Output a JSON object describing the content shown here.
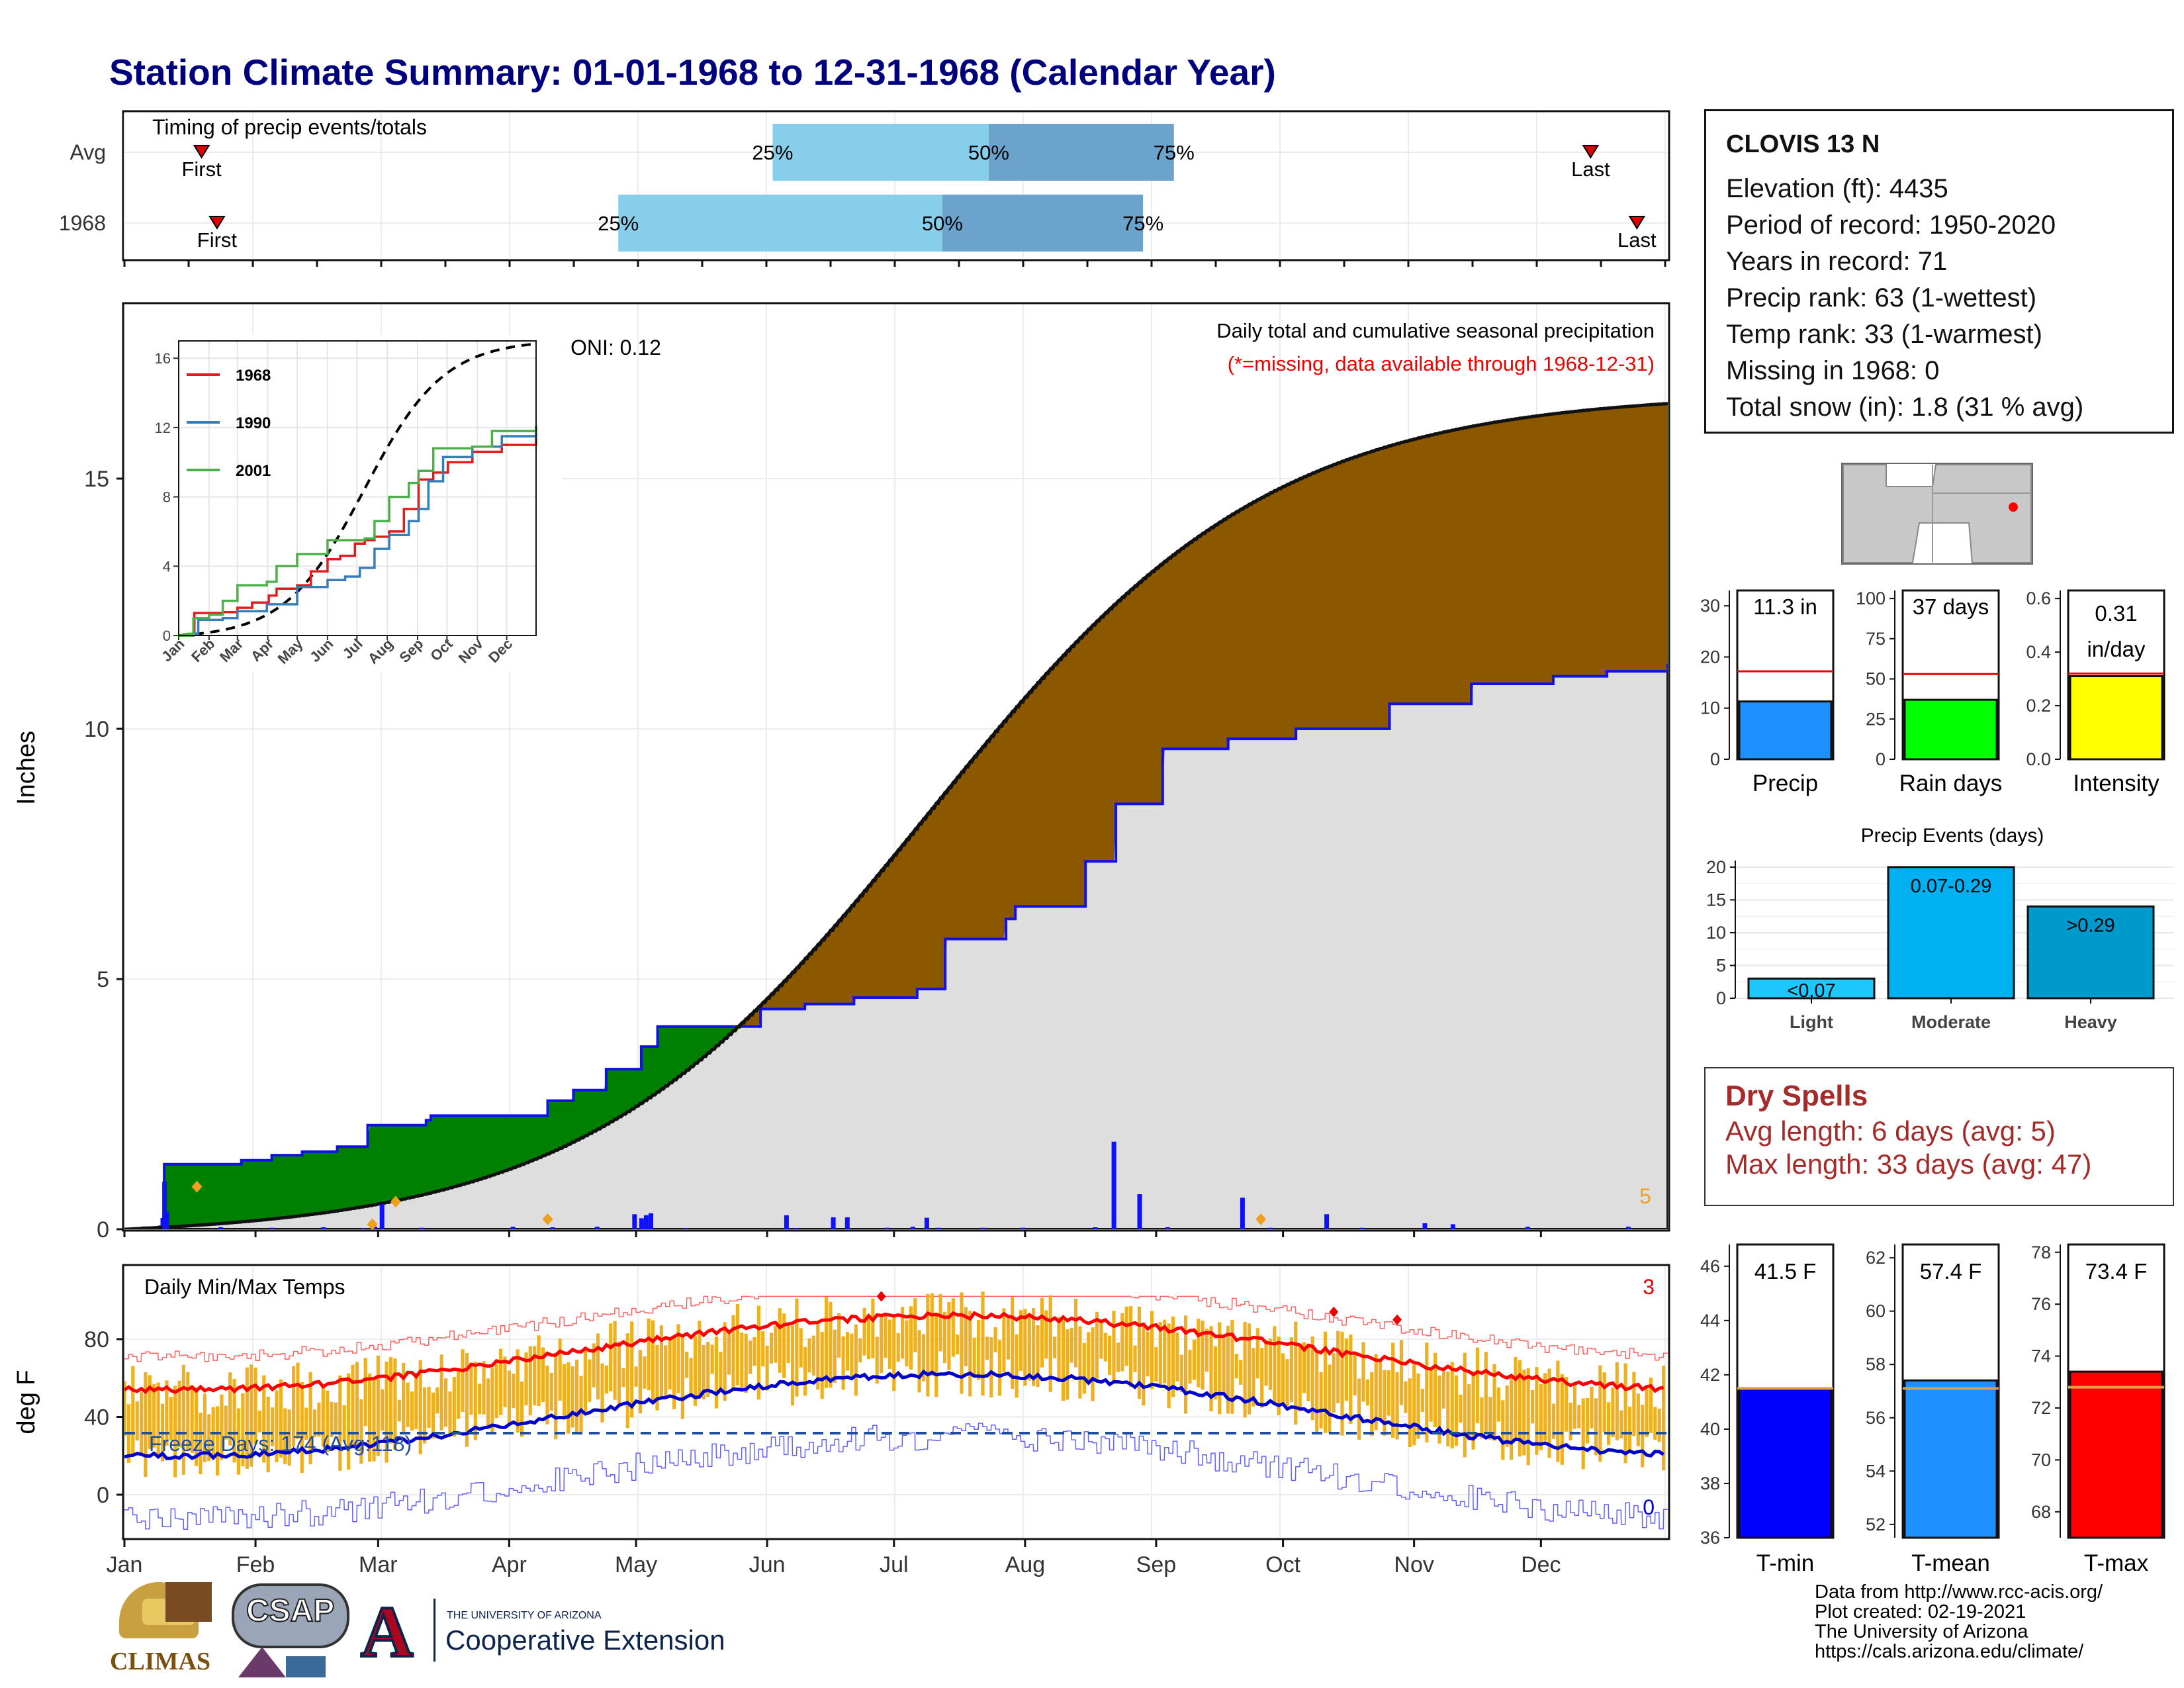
{
  "title": "Station Climate Summary: 01-01-1968 to 12-31-1968 (Calendar Year)",
  "colors": {
    "title": "#00007f",
    "cum_1968": "#7f4f00",
    "cum_deficit": "#0a7a0a",
    "normal_fill": "#e0e0e0",
    "precip_bars": "#0000ff",
    "temp_bars": "#f0b020",
    "tmax_avg": "#ff0000",
    "tmin_avg": "#0000c0"
  },
  "timing": {
    "label": "Timing of precip events/totals",
    "rows": [
      {
        "name": "Avg",
        "first": 0.05,
        "p25": 0.42,
        "p50": 0.56,
        "p75": 0.68,
        "last": 0.95,
        "first_label": "First",
        "last_label": "Last"
      },
      {
        "name": "1968",
        "first": 0.06,
        "p25": 0.32,
        "p50": 0.53,
        "p75": 0.66,
        "last": 0.98,
        "first_label": "First",
        "last_label": "Last"
      }
    ],
    "pct_labels": [
      "25%",
      "50%",
      "75%"
    ]
  },
  "precip_panel": {
    "ylabel": "Inches",
    "yticks": [
      "0",
      "5",
      "10",
      "15"
    ],
    "oni": "ONI: 0.12",
    "desc1": "Daily total and cumulative seasonal precipitation",
    "desc2": "(*=missing, data available through 1968-12-31)",
    "count_label": "5"
  },
  "inset": {
    "xticks": [
      "Jan",
      "Feb",
      "Mar",
      "Apr",
      "May",
      "Jun",
      "Jul",
      "Aug",
      "Sep",
      "Oct",
      "Nov",
      "Dec"
    ],
    "yticks": [
      "0",
      "4",
      "8",
      "12",
      "16"
    ],
    "legend": [
      "1968",
      "1990",
      "2001"
    ],
    "legend_colors": [
      "#e41a1c",
      "#377eb8",
      "#4daf4a"
    ]
  },
  "temp_panel": {
    "ylabel": "deg F",
    "title": "Daily Min/Max Temps",
    "yticks": [
      "0",
      "40",
      "80"
    ],
    "freeze": "Freeze Days: 174 (Avg:118)",
    "count_hi": "3",
    "count_lo": "0"
  },
  "months": [
    "Jan",
    "Feb",
    "Mar",
    "Apr",
    "May",
    "Jun",
    "Jul",
    "Aug",
    "Sep",
    "Oct",
    "Nov",
    "Dec"
  ],
  "info": {
    "station": "CLOVIS 13 N",
    "lines": [
      "Elevation (ft): 4435",
      "Period of record: 1950-2020",
      "Years in record: 71",
      "Precip rank: 63 (1-wettest)",
      "Temp rank: 33 (1-warmest)",
      "Missing in 1968: 0",
      "Total snow (in): 1.8 (31 % avg)"
    ]
  },
  "mini_bars": [
    {
      "label": "Precip",
      "value_label": "11.3 in",
      "yticks": [
        "0",
        "10",
        "20",
        "30"
      ],
      "color": "#1e90ff"
    },
    {
      "label": "Rain days",
      "value_label": "37 days",
      "yticks": [
        "0",
        "25",
        "50",
        "75",
        "100"
      ],
      "color": "#00ff00"
    },
    {
      "label": "Intensity",
      "value_label": "0.31",
      "value_label2": "in/day",
      "yticks": [
        "0.0",
        "0.2",
        "0.4",
        "0.6"
      ],
      "color": "#ffff00"
    }
  ],
  "events": {
    "title": "Precip Events (days)",
    "yticks": [
      "0",
      "5",
      "10",
      "15",
      "20"
    ],
    "categories": [
      "Light",
      "Moderate",
      "Heavy"
    ],
    "bar_labels": [
      "<0.07",
      "0.07-0.29",
      ">0.29"
    ]
  },
  "dry_spells": {
    "title": "Dry Spells",
    "line1": "Avg length: 6 days (avg: 5)",
    "line2": "Max length: 33 days (avg: 47)"
  },
  "temp_bars": [
    {
      "label": "T-min",
      "value_label": "41.5 F",
      "yticks": [
        "36",
        "38",
        "40",
        "42",
        "44",
        "46"
      ],
      "color": "#0000ff"
    },
    {
      "label": "T-mean",
      "value_label": "57.4 F",
      "yticks": [
        "52",
        "54",
        "56",
        "58",
        "60",
        "62"
      ],
      "color": "#1e90ff"
    },
    {
      "label": "T-max",
      "value_label": "73.4 F",
      "yticks": [
        "68",
        "70",
        "72",
        "74",
        "76",
        "78"
      ],
      "color": "#ff0000"
    }
  ],
  "footer": [
    "Data from http://www.rcc-acis.org/",
    "Plot created: 02-19-2021",
    "The University of Arizona",
    "https://cals.arizona.edu/climate/"
  ],
  "logos": {
    "climas": "CLIMAS",
    "csap": "CSAP",
    "ua_top": "THE UNIVERSITY OF ARIZONA",
    "ua_name": "Cooperative Extension"
  },
  "chart_data": [
    {
      "type": "area",
      "title": "Daily total and cumulative seasonal precipitation",
      "ylabel": "Inches",
      "ylim": [
        0,
        18.5
      ],
      "x": [
        "Jan",
        "Feb",
        "Mar",
        "Apr",
        "May",
        "Jun",
        "Jul",
        "Aug",
        "Sep",
        "Oct",
        "Nov",
        "Dec",
        "Dec-end"
      ],
      "series": [
        {
          "name": "1968",
          "values": [
            0.0,
            1.3,
            1.45,
            2.3,
            2.9,
            4.5,
            5.5,
            5.9,
            8.5,
            10.0,
            10.5,
            11.1,
            11.3
          ]
        }
      ]
    },
    {
      "type": "bar",
      "title": "Precip Events (days)",
      "categories": [
        "Light",
        "Moderate",
        "Heavy"
      ],
      "values": [
        3,
        20,
        14
      ],
      "ylim": [
        0,
        21
      ]
    },
    {
      "type": "bar",
      "categories": [
        "Precip",
        "Rain days",
        "Intensity"
      ],
      "values": [
        11.3,
        37,
        0.31
      ]
    },
    {
      "type": "bar",
      "categories": [
        "T-min",
        "T-mean",
        "T-max"
      ],
      "values": [
        41.5,
        57.4,
        73.4
      ]
    }
  ]
}
